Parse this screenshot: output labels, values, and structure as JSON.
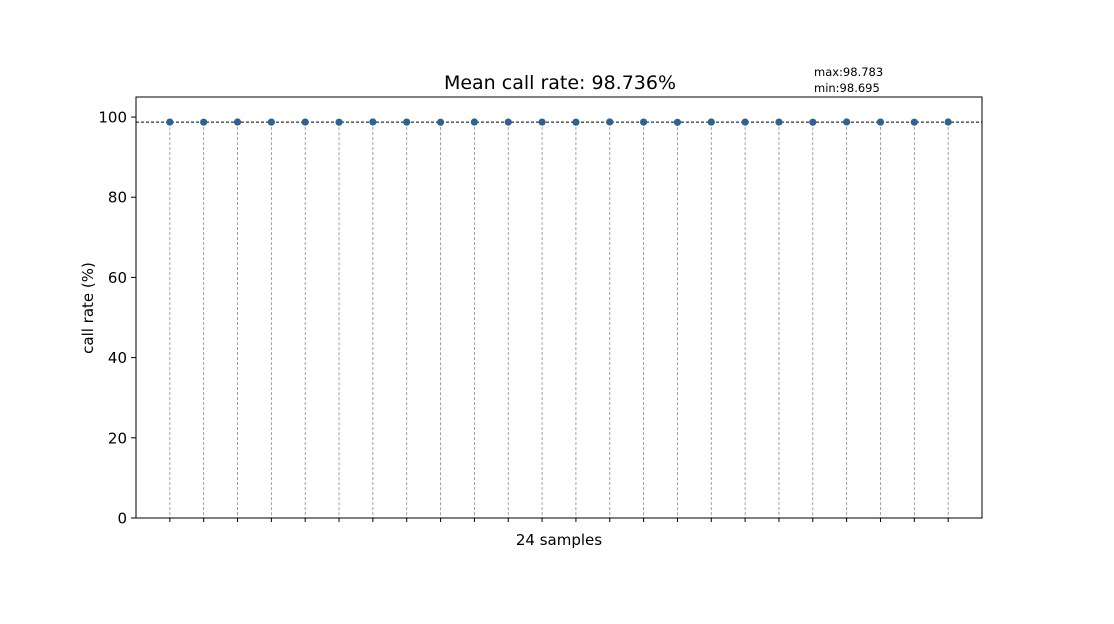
{
  "chart_data": {
    "type": "scatter",
    "title": "Mean call rate: 98.736%",
    "annotations": {
      "max_label": "max:98.783",
      "min_label": "min:98.695"
    },
    "xlabel": "24 samples",
    "ylabel": "call rate (%)",
    "ylim": [
      0,
      105
    ],
    "yticks": [
      0,
      20,
      40,
      60,
      80,
      100
    ],
    "xlim": [
      -1,
      24
    ],
    "mean_line": 98.736,
    "grid": false,
    "stems": true,
    "x": [
      0,
      1,
      2,
      3,
      4,
      5,
      6,
      7,
      8,
      9,
      10,
      11,
      12,
      13,
      14,
      15,
      16,
      17,
      18,
      19,
      20,
      21,
      22,
      23
    ],
    "series": [
      {
        "values": [
          98.74,
          98.72,
          98.76,
          98.73,
          98.75,
          98.71,
          98.78,
          98.74,
          98.7,
          98.76,
          98.73,
          98.75,
          98.72,
          98.77,
          98.74,
          98.69,
          98.76,
          98.73,
          98.75,
          98.71,
          98.78,
          98.74,
          98.72,
          98.76
        ],
        "color": "#2e6391"
      }
    ]
  }
}
